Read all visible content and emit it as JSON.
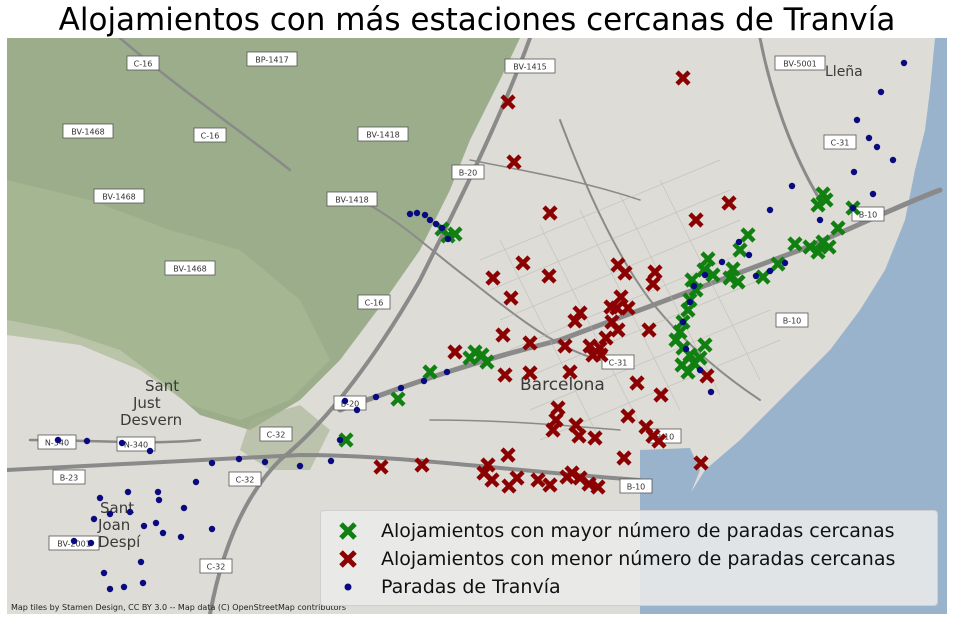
{
  "title": "Alojamientos con más estaciones cercanas de Tranvía",
  "attribution": "Map tiles by Stamen Design, CC BY 3.0 -- Map data (C) OpenStreetMap contributors",
  "legend": {
    "top_label": "Alojamientos con mayor número de paradas cercanas",
    "bottom_label": "Alojamientos con menor número de paradas cercanas",
    "stops_label": "Paradas de Tranvía"
  },
  "colors": {
    "top_marker": "#108010",
    "bottom_marker": "#8b0000",
    "stop_marker": "#0a0a80",
    "sea": "#9ab3cc",
    "hills": "#8fa57c",
    "urban": "#dedcd6"
  },
  "place_labels": {
    "barcelona": "Barcelona",
    "sant_just_1": "Sant",
    "sant_just_2": "Just",
    "sant_just_3": "Desvern",
    "sant_joan_1": "Sant",
    "sant_joan_2": "Joan",
    "sant_joan_3": "Despí",
    "lleida": "Lleña"
  },
  "road_shields": [
    "C-16",
    "BP-1417",
    "BV-1415",
    "BV-5001",
    "BV-1468",
    "C-16",
    "BV-1418",
    "B-20",
    "BV-1468",
    "BV-1418",
    "BV-1468",
    "C-16",
    "C-31",
    "B-10",
    "B-10",
    "C-31",
    "B-20",
    "C-32",
    "N-340",
    "N-340",
    "B-23",
    "C-32",
    "B-10",
    "BV-2001",
    "C-32",
    "B-10"
  ],
  "points": {
    "stops": [
      [
        904,
        63
      ],
      [
        881,
        92
      ],
      [
        857,
        120
      ],
      [
        869,
        138
      ],
      [
        877,
        147
      ],
      [
        893,
        160
      ],
      [
        854,
        172
      ],
      [
        873,
        194
      ],
      [
        853,
        208
      ],
      [
        820,
        220
      ],
      [
        770,
        210
      ],
      [
        792,
        186
      ],
      [
        749,
        255
      ],
      [
        739,
        242
      ],
      [
        722,
        262
      ],
      [
        705,
        275
      ],
      [
        694,
        286
      ],
      [
        690,
        302
      ],
      [
        683,
        322
      ],
      [
        686,
        349
      ],
      [
        700,
        370
      ],
      [
        711,
        392
      ],
      [
        756,
        276
      ],
      [
        770,
        271
      ],
      [
        785,
        263
      ],
      [
        410,
        214
      ],
      [
        417,
        213
      ],
      [
        425,
        215
      ],
      [
        430,
        220
      ],
      [
        436,
        224
      ],
      [
        442,
        228
      ],
      [
        448,
        239
      ],
      [
        447,
        372
      ],
      [
        424,
        381
      ],
      [
        401,
        388
      ],
      [
        376,
        397
      ],
      [
        345,
        401
      ],
      [
        357,
        410
      ],
      [
        340,
        440
      ],
      [
        300,
        466
      ],
      [
        331,
        461
      ],
      [
        265,
        462
      ],
      [
        239,
        459
      ],
      [
        212,
        463
      ],
      [
        196,
        482
      ],
      [
        184,
        508
      ],
      [
        158,
        492
      ],
      [
        159,
        500
      ],
      [
        156,
        523
      ],
      [
        144,
        526
      ],
      [
        163,
        533
      ],
      [
        181,
        537
      ],
      [
        212,
        529
      ],
      [
        130,
        512
      ],
      [
        110,
        514
      ],
      [
        94,
        519
      ],
      [
        91,
        543
      ],
      [
        141,
        562
      ],
      [
        104,
        573
      ],
      [
        110,
        589
      ],
      [
        124,
        587
      ],
      [
        74,
        541
      ],
      [
        58,
        440
      ],
      [
        87,
        441
      ],
      [
        122,
        443
      ],
      [
        150,
        451
      ],
      [
        128,
        492
      ],
      [
        100,
        498
      ],
      [
        143,
        583
      ]
    ],
    "top_accommodations": [
      [
        823,
        194
      ],
      [
        826,
        200
      ],
      [
        818,
        205
      ],
      [
        853,
        208
      ],
      [
        838,
        228
      ],
      [
        823,
        242
      ],
      [
        829,
        247
      ],
      [
        818,
        252
      ],
      [
        810,
        247
      ],
      [
        795,
        244
      ],
      [
        778,
        264
      ],
      [
        763,
        277
      ],
      [
        748,
        235
      ],
      [
        740,
        250
      ],
      [
        733,
        269
      ],
      [
        730,
        278
      ],
      [
        738,
        282
      ],
      [
        713,
        275
      ],
      [
        704,
        270
      ],
      [
        708,
        259
      ],
      [
        692,
        280
      ],
      [
        696,
        290
      ],
      [
        690,
        300
      ],
      [
        688,
        310
      ],
      [
        683,
        322
      ],
      [
        680,
        332
      ],
      [
        676,
        340
      ],
      [
        683,
        348
      ],
      [
        690,
        355
      ],
      [
        694,
        363
      ],
      [
        688,
        372
      ],
      [
        682,
        365
      ],
      [
        705,
        345
      ],
      [
        700,
        358
      ],
      [
        448,
        236
      ],
      [
        455,
        234
      ],
      [
        442,
        229
      ],
      [
        475,
        352
      ],
      [
        482,
        355
      ],
      [
        487,
        362
      ],
      [
        470,
        358
      ],
      [
        430,
        372
      ],
      [
        398,
        399
      ],
      [
        346,
        440
      ]
    ],
    "bottom_accommodations": [
      [
        683,
        78
      ],
      [
        508,
        102
      ],
      [
        514,
        162
      ],
      [
        550,
        213
      ],
      [
        696,
        220
      ],
      [
        729,
        203
      ],
      [
        523,
        263
      ],
      [
        549,
        276
      ],
      [
        493,
        278
      ],
      [
        511,
        298
      ],
      [
        618,
        265
      ],
      [
        625,
        273
      ],
      [
        655,
        272
      ],
      [
        653,
        284
      ],
      [
        621,
        297
      ],
      [
        617,
        308
      ],
      [
        628,
        308
      ],
      [
        611,
        307
      ],
      [
        580,
        313
      ],
      [
        575,
        321
      ],
      [
        612,
        322
      ],
      [
        618,
        330
      ],
      [
        606,
        338
      ],
      [
        600,
        348
      ],
      [
        593,
        355
      ],
      [
        601,
        355
      ],
      [
        590,
        346
      ],
      [
        565,
        346
      ],
      [
        530,
        343
      ],
      [
        503,
        335
      ],
      [
        649,
        330
      ],
      [
        455,
        352
      ],
      [
        505,
        375
      ],
      [
        530,
        373
      ],
      [
        570,
        372
      ],
      [
        637,
        383
      ],
      [
        661,
        395
      ],
      [
        707,
        376
      ],
      [
        628,
        416
      ],
      [
        558,
        408
      ],
      [
        556,
        420
      ],
      [
        553,
        430
      ],
      [
        576,
        425
      ],
      [
        579,
        436
      ],
      [
        595,
        438
      ],
      [
        646,
        427
      ],
      [
        653,
        436
      ],
      [
        659,
        441
      ],
      [
        624,
        458
      ],
      [
        701,
        463
      ],
      [
        572,
        473
      ],
      [
        580,
        478
      ],
      [
        567,
        477
      ],
      [
        589,
        484
      ],
      [
        598,
        487
      ],
      [
        550,
        485
      ],
      [
        538,
        480
      ],
      [
        517,
        478
      ],
      [
        509,
        486
      ],
      [
        488,
        465
      ],
      [
        484,
        473
      ],
      [
        492,
        480
      ],
      [
        508,
        455
      ],
      [
        422,
        465
      ],
      [
        381,
        467
      ]
    ]
  }
}
